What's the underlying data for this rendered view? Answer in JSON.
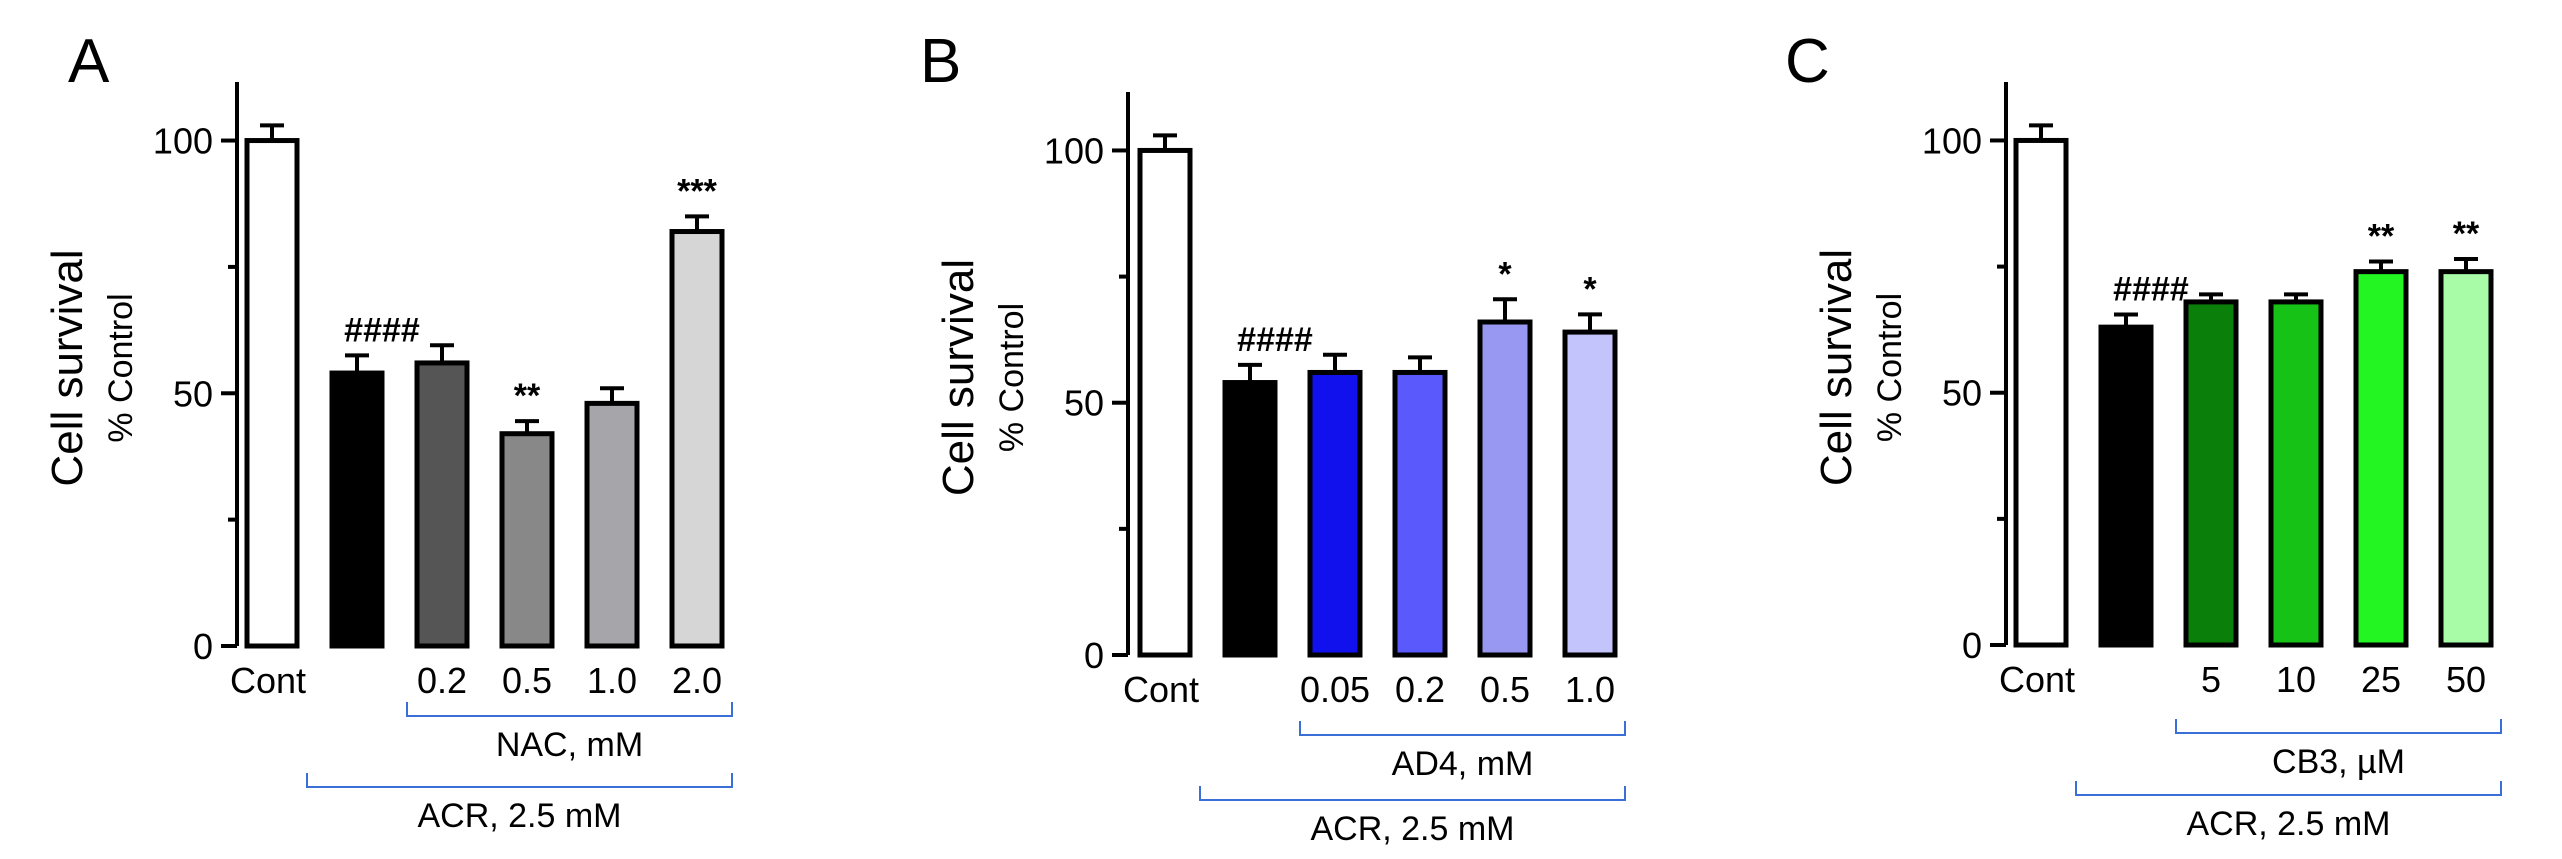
{
  "chart_data": [
    {
      "type": "bar",
      "panel_label": "A",
      "ylabel": "Cell survival",
      "ylabel_sub": "% Control",
      "ylim": [
        0,
        110
      ],
      "yticks": [
        "0",
        "50",
        "100"
      ],
      "categories": [
        "Cont",
        "",
        "0.2",
        "0.5",
        "1.0",
        "2.0"
      ],
      "values": [
        100,
        54,
        56,
        42,
        48,
        82
      ],
      "errors": [
        3,
        3.5,
        3.5,
        2.5,
        3,
        3
      ],
      "colors": [
        "#ffffff",
        "#000000",
        "#555555",
        "#888888",
        "#a6a6aa",
        "#d6d6d6"
      ],
      "annotations": [
        "",
        "####",
        "",
        "**",
        "",
        "***"
      ],
      "brackets": [
        {
          "label": "NAC, mM",
          "from": 2,
          "to": 5
        },
        {
          "label": "ACR, 2.5 mM",
          "from": 1,
          "to": 5
        }
      ]
    },
    {
      "type": "bar",
      "panel_label": "B",
      "ylabel": "Cell survival",
      "ylabel_sub": "% Control",
      "ylim": [
        0,
        110
      ],
      "yticks": [
        "0",
        "50",
        "100"
      ],
      "categories": [
        "Cont",
        "",
        "0.05",
        "0.2",
        "0.5",
        "1.0"
      ],
      "values": [
        100,
        54,
        56,
        56,
        66,
        64
      ],
      "errors": [
        3,
        3.5,
        3.5,
        3,
        4.5,
        3.5
      ],
      "colors": [
        "#ffffff",
        "#000000",
        "#1111ee",
        "#5a5afc",
        "#9898f2",
        "#c4c4fc"
      ],
      "annotations": [
        "",
        "####",
        "",
        "",
        "*",
        "*"
      ],
      "brackets": [
        {
          "label": "AD4, mM",
          "from": 2,
          "to": 5
        },
        {
          "label": "ACR, 2.5 mM",
          "from": 1,
          "to": 5
        }
      ]
    },
    {
      "type": "bar",
      "panel_label": "C",
      "ylabel": "Cell survival",
      "ylabel_sub": "% Control",
      "ylim": [
        0,
        110
      ],
      "yticks": [
        "0",
        "50",
        "100"
      ],
      "categories": [
        "Cont",
        "",
        "5",
        "10",
        "25",
        "50"
      ],
      "values": [
        100,
        63,
        68,
        68,
        74,
        74
      ],
      "errors": [
        3,
        2.5,
        1.5,
        1.5,
        2,
        2.5
      ],
      "colors": [
        "#ffffff",
        "#000000",
        "#0a800a",
        "#16c216",
        "#22f522",
        "#a8fca8"
      ],
      "annotations": [
        "",
        "####",
        "",
        "",
        "**",
        "**"
      ],
      "brackets": [
        {
          "label": "CB3, µM",
          "from": 2,
          "to": 5
        },
        {
          "label": "ACR, 2.5 mM",
          "from": 1,
          "to": 5
        }
      ]
    }
  ],
  "style": {
    "bar_edge": "#000000",
    "bracket_color": "#3a6fd8",
    "axis_color": "#000000"
  }
}
